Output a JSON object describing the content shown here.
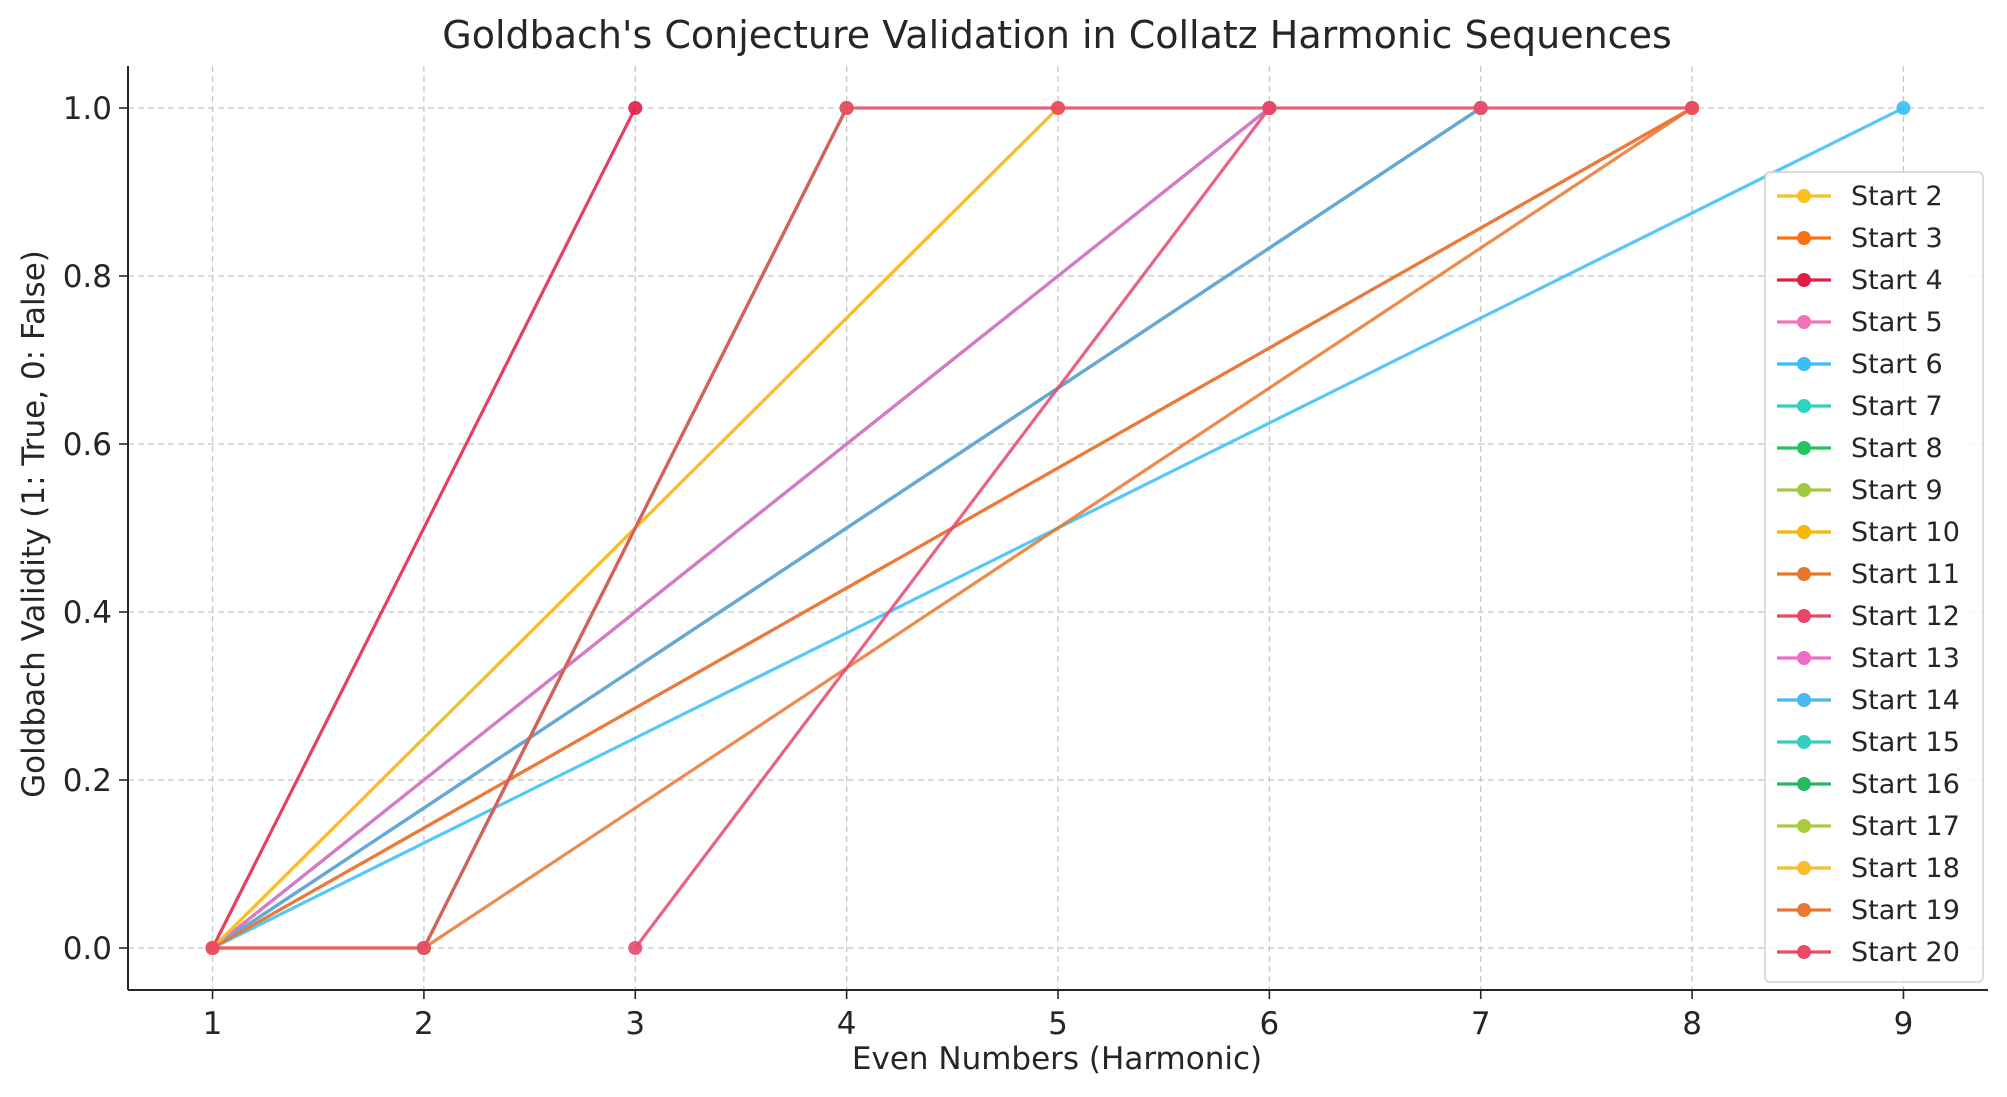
{
  "chart_data": {
    "type": "line",
    "title": "Goldbach's Conjecture Validation in Collatz Harmonic Sequences",
    "xlabel": "Even Numbers (Harmonic)",
    "ylabel": "Goldbach Validity (1: True, 0: False)",
    "xlim": [
      0.6,
      9.4
    ],
    "ylim": [
      -0.05,
      1.05
    ],
    "xticks": [
      "1",
      "2",
      "3",
      "4",
      "5",
      "6",
      "7",
      "8",
      "9"
    ],
    "yticks": [
      "0.0",
      "0.2",
      "0.4",
      "0.6",
      "0.8",
      "1.0"
    ],
    "grid": true,
    "legend_position": "right",
    "series": [
      {
        "name": "Start 2",
        "color": "#fbbf24",
        "x": [
          1,
          2
        ],
        "y": [
          0,
          0
        ]
      },
      {
        "name": "Start 3",
        "color": "#f97316",
        "x": [
          1,
          8
        ],
        "y": [
          0,
          1
        ]
      },
      {
        "name": "Start 4",
        "color": "#e11d48",
        "x": [
          1,
          3
        ],
        "y": [
          0,
          1
        ]
      },
      {
        "name": "Start 5",
        "color": "#f472b6",
        "x": [
          1,
          6
        ],
        "y": [
          0,
          1
        ]
      },
      {
        "name": "Start 6",
        "color": "#38bdf8",
        "x": [
          1,
          9
        ],
        "y": [
          0,
          1
        ]
      },
      {
        "name": "Start 7",
        "color": "#2dd4bf",
        "x": [
          1,
          6
        ],
        "y": [
          0,
          1
        ]
      },
      {
        "name": "Start 8",
        "color": "#22c55e",
        "x": [
          1,
          7
        ],
        "y": [
          0,
          1
        ]
      },
      {
        "name": "Start 9",
        "color": "#a3c940",
        "x": [
          2,
          4
        ],
        "y": [
          0,
          1
        ]
      },
      {
        "name": "Start 10",
        "color": "#f5b700",
        "x": [
          1,
          5
        ],
        "y": [
          0,
          1
        ]
      },
      {
        "name": "Start 11",
        "color": "#e8772e",
        "x": [
          2,
          8
        ],
        "y": [
          0,
          1
        ]
      },
      {
        "name": "Start 12",
        "color": "#e8476b",
        "x": [
          1,
          7
        ],
        "y": [
          0,
          1
        ]
      },
      {
        "name": "Start 13",
        "color": "#f06bc8",
        "x": [
          1,
          6
        ],
        "y": [
          0,
          1
        ]
      },
      {
        "name": "Start 14",
        "color": "#4cb8f0",
        "x": [
          1,
          7
        ],
        "y": [
          0,
          1
        ]
      },
      {
        "name": "Start 15",
        "color": "#35cfc0",
        "x": [
          2,
          4
        ],
        "y": [
          0,
          1
        ]
      },
      {
        "name": "Start 16",
        "color": "#27b863",
        "x": [
          2,
          4
        ],
        "y": [
          0,
          1
        ]
      },
      {
        "name": "Start 17",
        "color": "#a8cc3c",
        "x": [
          2,
          4
        ],
        "y": [
          0,
          1
        ]
      },
      {
        "name": "Start 18",
        "color": "#fbbb2e",
        "x": [
          1,
          5
        ],
        "y": [
          0,
          1
        ]
      },
      {
        "name": "Start 19",
        "color": "#e8773a",
        "x": [
          1,
          8
        ],
        "y": [
          0,
          1
        ]
      },
      {
        "name": "Start 20",
        "color": "#ea4a64",
        "x": [
          1,
          2,
          4,
          5,
          6,
          7,
          8
        ],
        "y": [
          0,
          0,
          1,
          1,
          1,
          1,
          1
        ]
      }
    ],
    "extra_points": [
      {
        "series": "Start 12",
        "x": [
          3,
          6
        ],
        "y": [
          0,
          1
        ]
      }
    ]
  }
}
